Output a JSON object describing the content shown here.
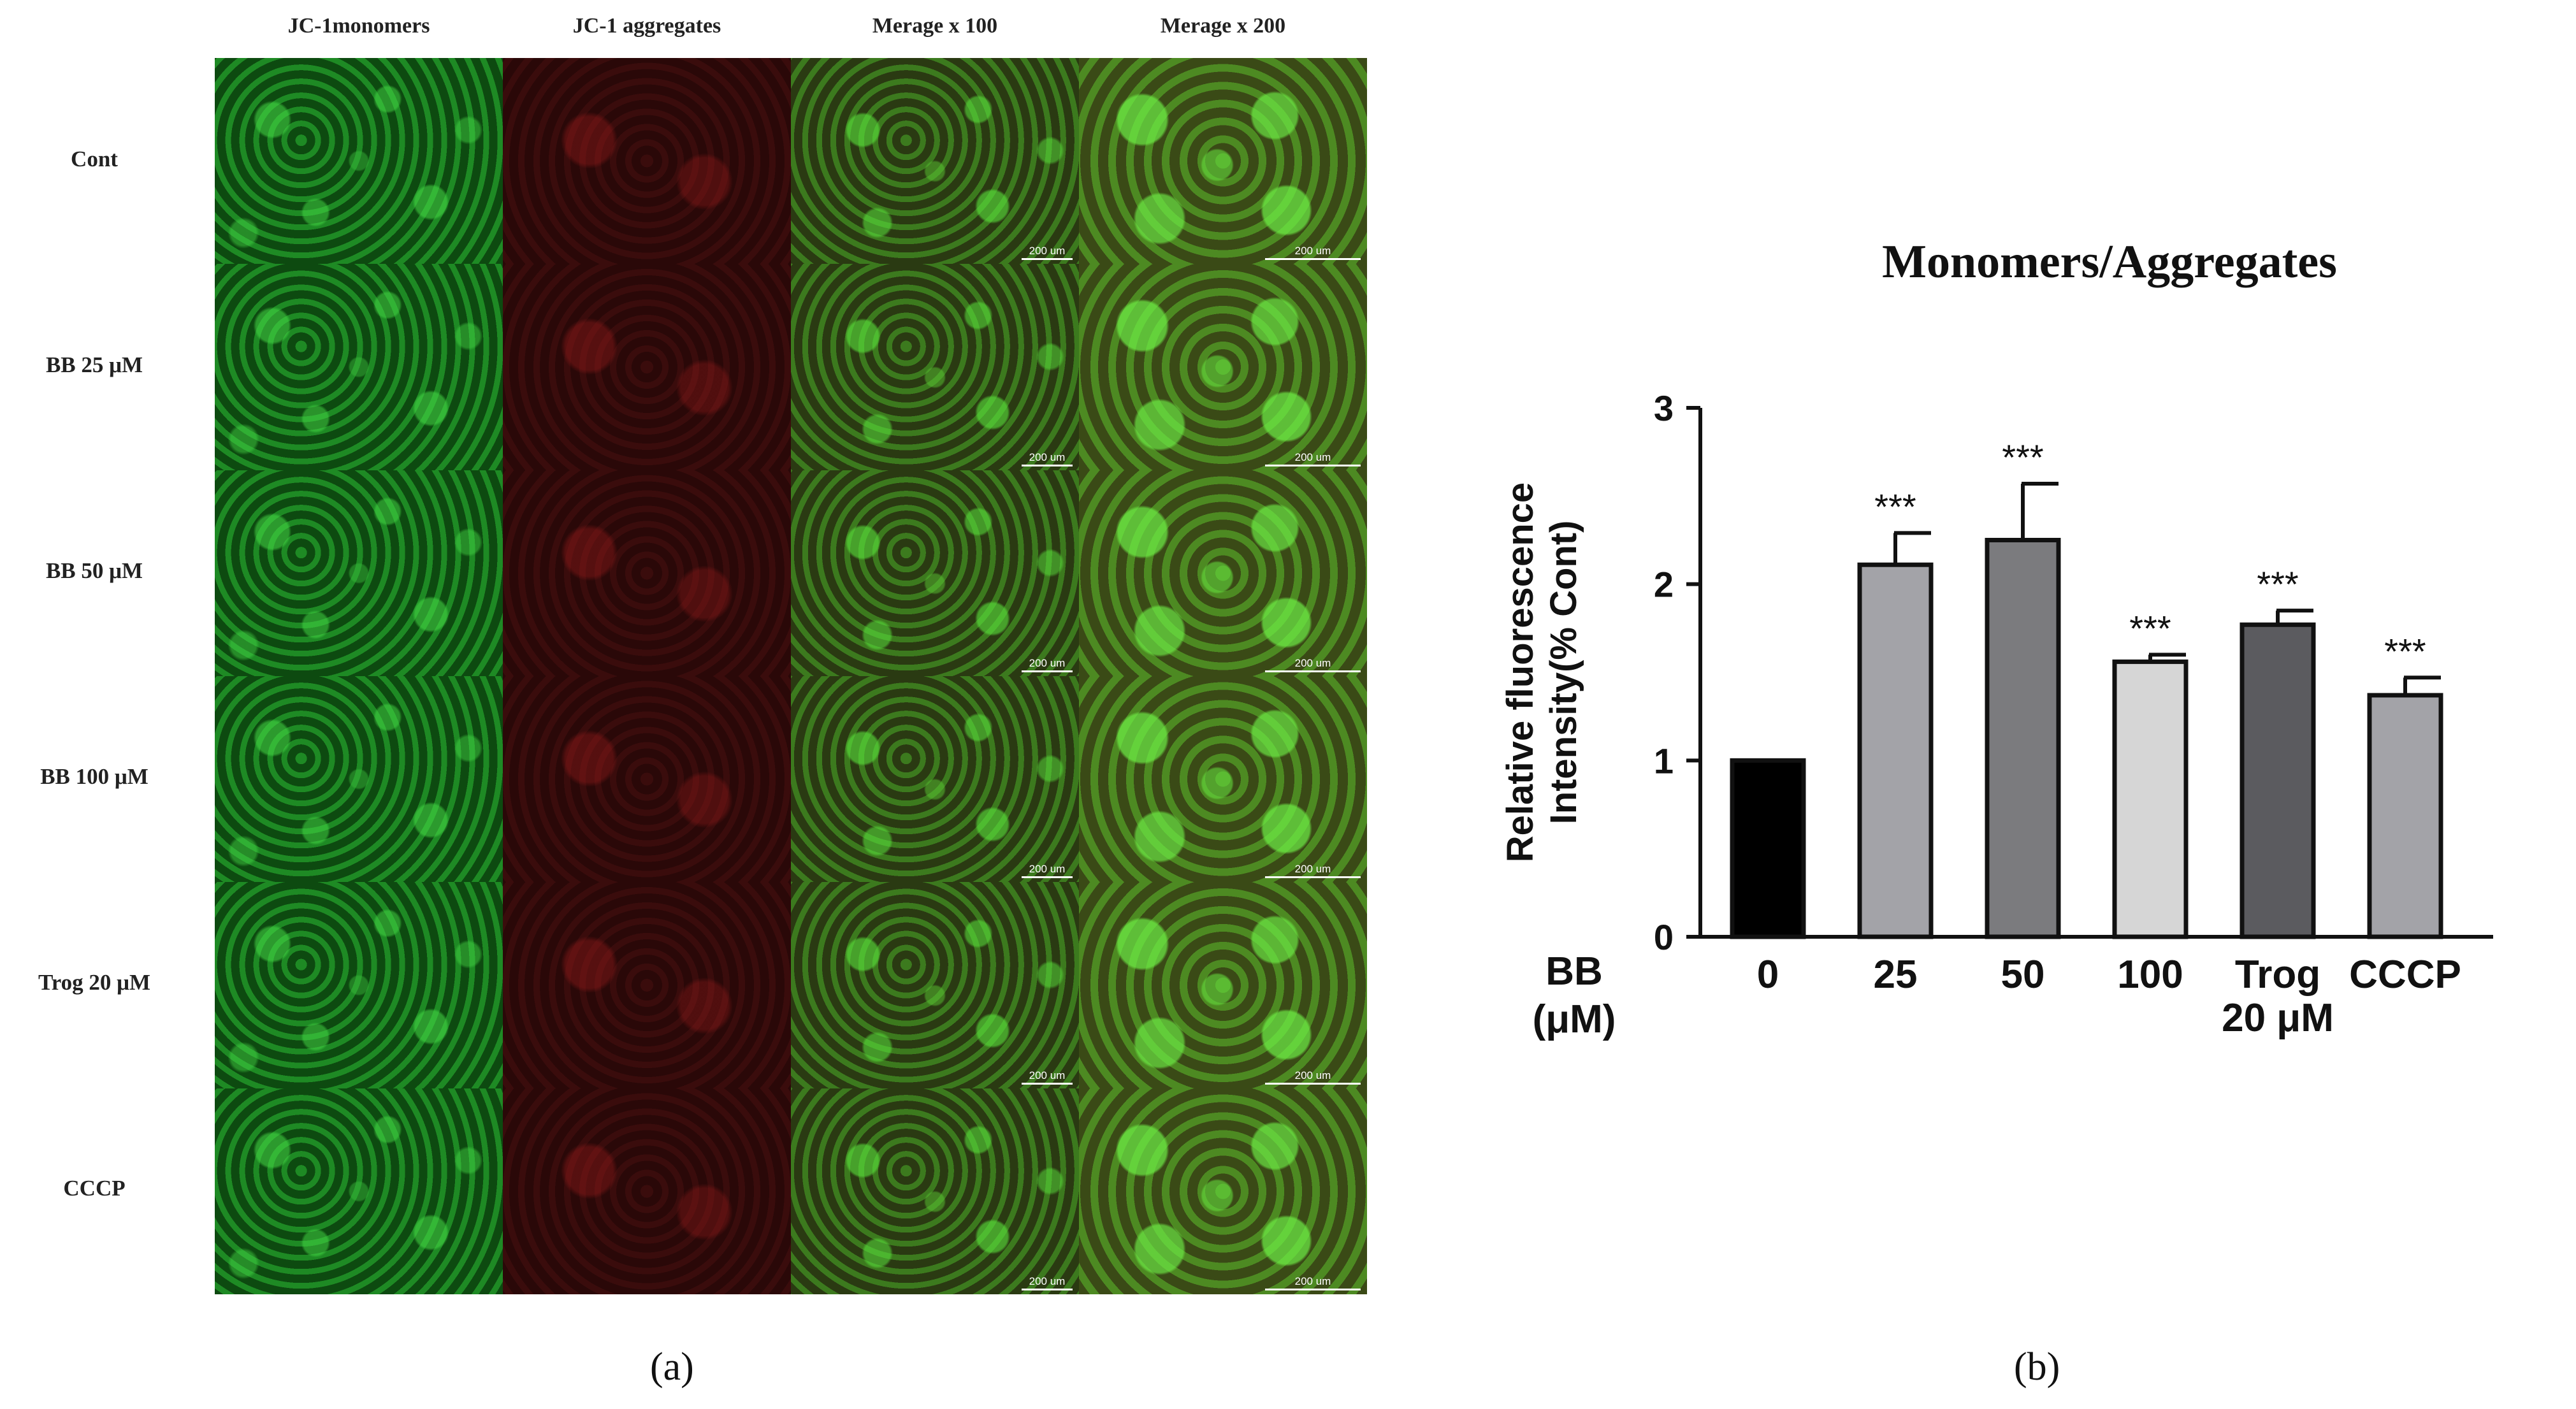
{
  "panel_a": {
    "column_headers": [
      "JC-1monomers",
      "JC-1 aggregates",
      "Merage x 100",
      "Merage x 200"
    ],
    "row_labels": [
      "Cont",
      "BB 25 μM",
      "BB 50 μM",
      "BB 100 μM",
      "Trog 20 μM",
      "CCCP"
    ],
    "scale_bar_label": "200 um",
    "label": "(a)"
  },
  "panel_b": {
    "label": "(b)"
  },
  "chart_data": {
    "type": "bar",
    "title": "Monomers/Aggregates",
    "ylabel_line1": "Relative fluorescence",
    "ylabel_line2": "Intensity(% Cont)",
    "xlabel_line1": "BB",
    "xlabel_line2": "(μM)",
    "categories": [
      [
        "0"
      ],
      [
        "25"
      ],
      [
        "50"
      ],
      [
        "100"
      ],
      [
        "Trog",
        "20 μM"
      ],
      [
        "CCCP"
      ]
    ],
    "values": [
      1.0,
      2.11,
      2.25,
      1.56,
      1.77,
      1.37
    ],
    "errors": [
      0.0,
      0.18,
      0.32,
      0.04,
      0.08,
      0.1
    ],
    "significance": [
      "",
      "***",
      "***",
      "***",
      "***",
      "***"
    ],
    "bar_colors": [
      "#000000",
      "#a3a3a8",
      "#7b7b7e",
      "#d6d6d6",
      "#5b5b5f",
      "#a3a3a8"
    ],
    "ylim": [
      0,
      3
    ],
    "yticks": [
      0,
      1,
      2,
      3
    ]
  }
}
